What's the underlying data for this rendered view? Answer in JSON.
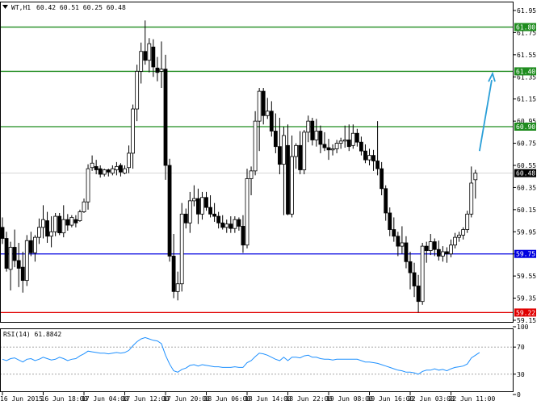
{
  "header": {
    "symbol_label": "WT,H1",
    "ohlc": "60.42 60.51 60.25 60.48",
    "menu_icon": "triangle-down-icon"
  },
  "rsi_header": {
    "label": "RSI(14) 61.8842"
  },
  "chart_data": [
    {
      "type": "candlestick",
      "title": "WT,H1 60.42 60.51 60.25 60.48",
      "ylim": [
        59.15,
        61.95
      ],
      "yticks": [
        "61.95",
        "61.75",
        "61.55",
        "61.35",
        "61.15",
        "60.95",
        "60.75",
        "60.55",
        "60.35",
        "60.15",
        "59.95",
        "59.75",
        "59.55",
        "59.35",
        "59.15"
      ],
      "last_price": 60.48,
      "candle_colors": {
        "bull": "#ffffff",
        "bear": "#000000"
      },
      "hlines": [
        {
          "value": 61.8,
          "label": "61.80",
          "color": "#1f8c1f"
        },
        {
          "value": 61.4,
          "label": "61.40",
          "color": "#1f8c1f"
        },
        {
          "value": 60.9,
          "label": "60.90",
          "color": "#1f8c1f"
        },
        {
          "value": 59.75,
          "label": "59.75",
          "color": "#0000e0"
        },
        {
          "value": 59.22,
          "label": "59.22",
          "color": "#e00000"
        }
      ],
      "arrow": {
        "from": [
          117,
          60.68
        ],
        "to": [
          120,
          61.38
        ],
        "color": "#2a9fd8"
      },
      "candles": [
        [
          59.99,
          60.08,
          59.84,
          59.89
        ],
        [
          59.89,
          59.95,
          59.59,
          59.62
        ],
        [
          59.61,
          59.86,
          59.42,
          59.81
        ],
        [
          59.81,
          59.97,
          59.63,
          59.69
        ],
        [
          59.69,
          59.85,
          59.45,
          59.62
        ],
        [
          59.63,
          59.77,
          59.4,
          59.51
        ],
        [
          59.51,
          59.92,
          59.46,
          59.87
        ],
        [
          59.87,
          59.95,
          59.73,
          59.76
        ],
        [
          59.76,
          59.92,
          59.68,
          59.9
        ],
        [
          59.9,
          60.07,
          59.84,
          59.99
        ],
        [
          59.99,
          60.19,
          59.89,
          60.06
        ],
        [
          60.05,
          60.13,
          59.85,
          59.91
        ],
        [
          59.91,
          60.09,
          59.81,
          59.95
        ],
        [
          59.95,
          60.12,
          59.91,
          60.09
        ],
        [
          60.09,
          60.12,
          59.92,
          59.94
        ],
        [
          59.94,
          60.19,
          59.9,
          60.06
        ],
        [
          60.06,
          60.11,
          59.96,
          60.01
        ],
        [
          60.01,
          60.1,
          59.99,
          60.08
        ],
        [
          60.06,
          60.1,
          59.99,
          60.03
        ],
        [
          60.05,
          60.15,
          60.04,
          60.13
        ],
        [
          60.13,
          60.25,
          60.12,
          60.22
        ],
        [
          60.22,
          60.56,
          60.15,
          60.52
        ],
        [
          60.53,
          60.64,
          60.5,
          60.57
        ],
        [
          60.54,
          60.6,
          60.47,
          60.51
        ],
        [
          60.52,
          60.55,
          60.44,
          60.47
        ],
        [
          60.47,
          60.52,
          60.45,
          60.51
        ],
        [
          60.51,
          60.52,
          60.45,
          60.49
        ],
        [
          60.48,
          60.55,
          60.46,
          60.52
        ],
        [
          60.51,
          60.58,
          60.46,
          60.54
        ],
        [
          60.55,
          60.57,
          60.45,
          60.49
        ],
        [
          60.48,
          60.55,
          60.47,
          60.52
        ],
        [
          60.53,
          60.73,
          60.48,
          60.66
        ],
        [
          60.66,
          61.1,
          60.52,
          61.06
        ],
        [
          61.06,
          61.46,
          60.95,
          61.4
        ],
        [
          61.4,
          61.66,
          61.29,
          61.58
        ],
        [
          61.58,
          61.86,
          61.46,
          61.5
        ],
        [
          61.5,
          61.7,
          61.39,
          61.65
        ],
        [
          61.62,
          61.69,
          61.35,
          61.44
        ],
        [
          61.43,
          61.53,
          61.31,
          61.39
        ],
        [
          61.4,
          61.67,
          61.25,
          61.42
        ],
        [
          61.42,
          61.55,
          60.42,
          60.55
        ],
        [
          60.55,
          60.61,
          59.68,
          59.73
        ],
        [
          59.73,
          59.93,
          59.35,
          59.41
        ],
        [
          59.41,
          59.59,
          59.33,
          59.48
        ],
        [
          59.48,
          60.21,
          59.41,
          60.11
        ],
        [
          60.11,
          60.16,
          59.98,
          60.03
        ],
        [
          60.03,
          60.31,
          59.94,
          60.23
        ],
        [
          60.23,
          60.37,
          60.18,
          60.25
        ],
        [
          60.25,
          60.34,
          60.02,
          60.11
        ],
        [
          60.11,
          60.31,
          60.06,
          60.26
        ],
        [
          60.26,
          60.31,
          60.14,
          60.17
        ],
        [
          60.17,
          60.28,
          60.08,
          60.11
        ],
        [
          60.11,
          60.21,
          60.04,
          60.09
        ],
        [
          60.09,
          60.13,
          59.98,
          60.03
        ],
        [
          60.03,
          60.1,
          59.97,
          59.99
        ],
        [
          59.99,
          60.06,
          59.94,
          60.02
        ],
        [
          60.02,
          60.09,
          59.94,
          59.98
        ],
        [
          59.98,
          60.09,
          59.94,
          60.06
        ],
        [
          60.06,
          60.08,
          59.96,
          60.0
        ],
        [
          60.0,
          60.1,
          59.76,
          59.83
        ],
        [
          59.83,
          60.52,
          59.8,
          60.43
        ],
        [
          60.43,
          60.54,
          60.28,
          60.5
        ],
        [
          60.5,
          61.04,
          60.46,
          60.95
        ],
        [
          60.95,
          61.25,
          60.68,
          61.22
        ],
        [
          61.22,
          61.25,
          60.92,
          61.0
        ],
        [
          61.0,
          61.16,
          60.97,
          61.04
        ],
        [
          61.04,
          61.13,
          60.81,
          60.86
        ],
        [
          60.86,
          61.02,
          60.66,
          60.72
        ],
        [
          60.72,
          60.98,
          60.47,
          60.56
        ],
        [
          60.56,
          60.9,
          60.1,
          60.82
        ],
        [
          60.73,
          60.92,
          60.1,
          60.11
        ],
        [
          60.11,
          60.82,
          60.08,
          60.63
        ],
        [
          60.63,
          60.75,
          60.52,
          60.73
        ],
        [
          60.73,
          60.86,
          60.47,
          60.51
        ],
        [
          60.51,
          60.87,
          60.47,
          60.85
        ],
        [
          60.85,
          61.0,
          60.76,
          60.95
        ],
        [
          60.95,
          60.98,
          60.73,
          60.78
        ],
        [
          60.78,
          60.97,
          60.72,
          60.86
        ],
        [
          60.86,
          60.91,
          60.66,
          60.74
        ],
        [
          60.74,
          60.85,
          60.68,
          60.71
        ],
        [
          60.71,
          60.79,
          60.6,
          60.69
        ],
        [
          60.69,
          60.74,
          60.64,
          60.7
        ],
        [
          60.7,
          60.78,
          60.66,
          60.75
        ],
        [
          60.75,
          60.8,
          60.7,
          60.77
        ],
        [
          60.77,
          60.91,
          60.71,
          60.78
        ],
        [
          60.78,
          60.92,
          60.68,
          60.72
        ],
        [
          60.73,
          60.92,
          60.7,
          60.84
        ],
        [
          60.84,
          60.88,
          60.72,
          60.76
        ],
        [
          60.76,
          60.81,
          60.64,
          60.68
        ],
        [
          60.68,
          60.74,
          60.57,
          60.6
        ],
        [
          60.6,
          60.7,
          60.55,
          60.64
        ],
        [
          60.64,
          60.69,
          60.5,
          60.59
        ],
        [
          60.59,
          60.95,
          60.46,
          60.52
        ],
        [
          60.52,
          60.58,
          60.28,
          60.34
        ],
        [
          60.34,
          60.37,
          60.05,
          60.12
        ],
        [
          60.12,
          60.17,
          59.91,
          59.97
        ],
        [
          59.97,
          60.08,
          59.86,
          59.91
        ],
        [
          59.91,
          59.95,
          59.73,
          59.82
        ],
        [
          59.82,
          60.0,
          59.75,
          59.85
        ],
        [
          59.85,
          59.91,
          59.62,
          59.68
        ],
        [
          59.68,
          59.77,
          59.43,
          59.58
        ],
        [
          59.58,
          59.67,
          59.36,
          59.46
        ],
        [
          59.46,
          59.56,
          59.22,
          59.32
        ],
        [
          59.32,
          59.85,
          59.29,
          59.82
        ],
        [
          59.82,
          59.86,
          59.67,
          59.78
        ],
        [
          59.78,
          59.93,
          59.74,
          59.86
        ],
        [
          59.86,
          59.89,
          59.73,
          59.79
        ],
        [
          59.79,
          59.87,
          59.69,
          59.73
        ],
        [
          59.73,
          59.82,
          59.68,
          59.77
        ],
        [
          59.77,
          59.81,
          59.67,
          59.75
        ],
        [
          59.75,
          59.88,
          59.72,
          59.83
        ],
        [
          59.83,
          59.94,
          59.8,
          59.9
        ],
        [
          59.9,
          59.95,
          59.86,
          59.92
        ],
        [
          59.92,
          59.99,
          59.88,
          59.97
        ],
        [
          59.97,
          60.14,
          59.94,
          60.11
        ],
        [
          60.11,
          60.54,
          60.08,
          60.39
        ],
        [
          60.42,
          60.51,
          60.25,
          60.48
        ]
      ],
      "xticks": [
        {
          "index": 0,
          "label": "16 Jun 2015"
        },
        {
          "index": 10,
          "label": "16 Jun 18:00"
        },
        {
          "index": 20,
          "label": "17 Jun 04:00"
        },
        {
          "index": 30,
          "label": "17 Jun 12:00"
        },
        {
          "index": 40,
          "label": "17 Jun 20:00"
        },
        {
          "index": 50,
          "label": "18 Jun 06:00"
        },
        {
          "index": 60,
          "label": "18 Jun 14:00"
        },
        {
          "index": 70,
          "label": "18 Jun 22:00"
        },
        {
          "index": 80,
          "label": "19 Jun 08:00"
        },
        {
          "index": 90,
          "label": "19 Jun 16:00"
        },
        {
          "index": 100,
          "label": "22 Jun 03:00"
        },
        {
          "index": 110,
          "label": "22 Jun 11:00"
        }
      ]
    },
    {
      "type": "line",
      "title": "RSI(14) 61.8842",
      "ylim": [
        0,
        100
      ],
      "yticks": [
        "100",
        "70",
        "30",
        "0"
      ],
      "color": "#1e90ff",
      "values": [
        52,
        50,
        53,
        54,
        51,
        48,
        52,
        53,
        50,
        52,
        55,
        53,
        51,
        52,
        55,
        53,
        50,
        52,
        53,
        57,
        60,
        64,
        63,
        62,
        61,
        61,
        60,
        61,
        62,
        61,
        62,
        65,
        72,
        78,
        82,
        84,
        82,
        80,
        79,
        75,
        58,
        45,
        35,
        33,
        37,
        39,
        43,
        44,
        42,
        44,
        43,
        42,
        41,
        41,
        40,
        40,
        40,
        41,
        40,
        40,
        47,
        50,
        56,
        61,
        60,
        58,
        55,
        52,
        50,
        55,
        50,
        55,
        55,
        54,
        57,
        58,
        55,
        55,
        53,
        52,
        52,
        51,
        52,
        52,
        52,
        52,
        52,
        52,
        50,
        48,
        48,
        47,
        46,
        44,
        42,
        40,
        38,
        36,
        35,
        33,
        33,
        32,
        30,
        34,
        36,
        36,
        38,
        36,
        37,
        35,
        38,
        40,
        41,
        42,
        45,
        54,
        58,
        62
      ]
    }
  ]
}
